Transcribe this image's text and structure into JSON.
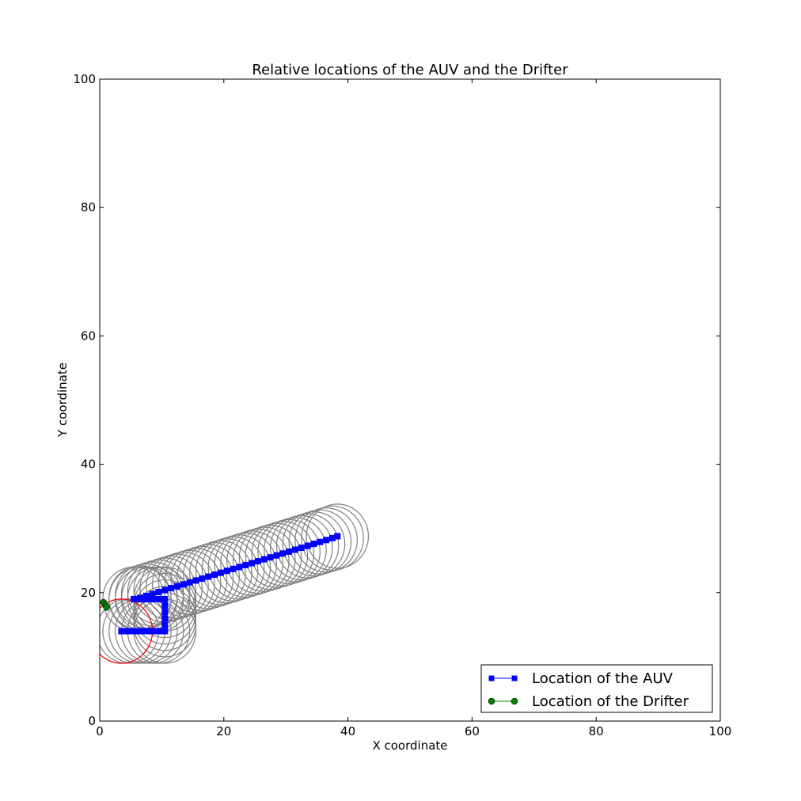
{
  "chart_data": {
    "type": "scatter",
    "title": "Relative locations of the AUV and the Drifter",
    "xlabel": "X coordinate",
    "ylabel": "Y coordinate",
    "xlim": [
      0,
      100
    ],
    "ylim": [
      0,
      100
    ],
    "x_ticks": [
      "0",
      "20",
      "40",
      "60",
      "80",
      "100"
    ],
    "y_ticks": [
      "0",
      "20",
      "40",
      "60",
      "80",
      "100"
    ],
    "grid": false,
    "legend_position": "lower-right",
    "series": [
      {
        "name": "Location of the AUV",
        "color": "#0000ff",
        "marker": "square",
        "x": [
          3.5,
          4.5,
          5.5,
          6.5,
          7.5,
          8.5,
          9.5,
          10.5,
          10.5,
          10.5,
          10.5,
          10.5,
          10.5,
          9.5,
          8.5,
          7.5,
          6.5,
          5.5,
          6.5,
          7.5,
          8.5,
          9.5,
          10.5,
          11.5,
          12.5,
          13.5,
          14.5,
          15.5,
          16.5,
          17.5,
          18.5,
          19.5,
          20.5,
          21.5,
          22.5,
          23.5,
          24.5,
          25.5,
          26.5,
          27.5,
          28.5,
          29.5,
          30.5,
          31.5,
          32.5,
          33.5,
          34.5,
          35.5,
          36.5,
          37.5,
          38.3
        ],
        "y": [
          14.0,
          14.0,
          14.0,
          14.0,
          14.0,
          14.0,
          14.0,
          14.0,
          15.0,
          16.0,
          17.0,
          18.0,
          19.0,
          19.0,
          19.0,
          19.0,
          19.0,
          19.0,
          19.2,
          19.5,
          19.8,
          20.1,
          20.4,
          20.7,
          21.0,
          21.3,
          21.6,
          21.9,
          22.2,
          22.5,
          22.8,
          23.1,
          23.4,
          23.7,
          24.0,
          24.3,
          24.6,
          24.9,
          25.2,
          25.5,
          25.8,
          26.1,
          26.4,
          26.7,
          27.0,
          27.3,
          27.6,
          27.9,
          28.2,
          28.5,
          28.8
        ]
      },
      {
        "name": "Location of the Drifter",
        "color": "#008000",
        "marker": "circle",
        "x": [
          0.6,
          0.8,
          1.0,
          1.1
        ],
        "y": [
          18.5,
          18.2,
          17.9,
          17.7
        ]
      }
    ],
    "annotations": {
      "range_circle_radius": 5,
      "range_circle_color": "#808080",
      "red_circle": {
        "x": 3.5,
        "y": 14.0,
        "r": 5,
        "color": "#ff0000"
      }
    }
  }
}
